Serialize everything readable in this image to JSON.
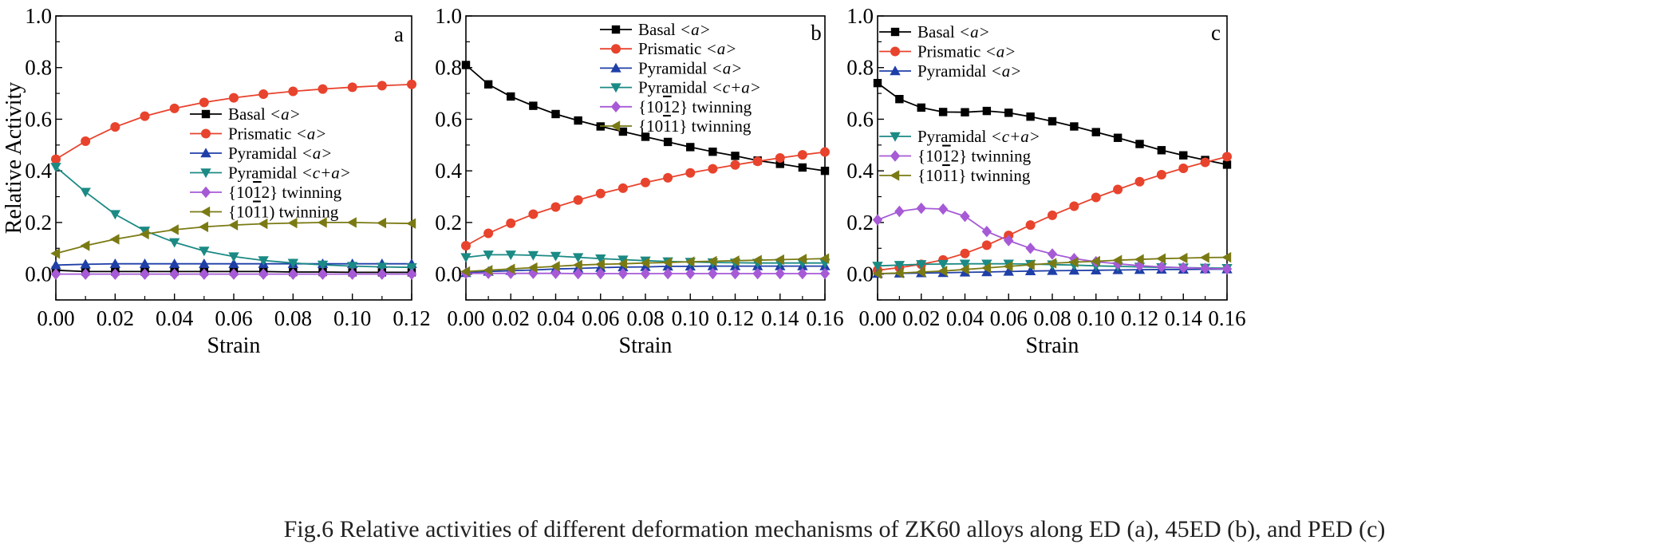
{
  "caption": "Fig.6    Relative activities of different deformation mechanisms of ZK60 alloys along ED (a), 45ED (b), and PED (c)",
  "styles": {
    "Basal": {
      "color": "#000000",
      "marker": "square"
    },
    "Prismatic": {
      "color": "#e8432d",
      "marker": "circle"
    },
    "PyrA": {
      "color": "#1f3fa8",
      "marker": "triangle-up"
    },
    "PyrCA": {
      "color": "#1b8a84",
      "marker": "triangle-down"
    },
    "T1012": {
      "color": "#a65ad6",
      "marker": "diamond"
    },
    "T1011": {
      "color": "#7a7a14",
      "marker": "triangle-left"
    }
  },
  "chart_data": [
    {
      "type": "line",
      "panel_label": "a",
      "xlabel": "Strain",
      "ylabel": "Relative Activity",
      "xlim": [
        0,
        0.12
      ],
      "ylim": [
        -0.1,
        1.0
      ],
      "xticks": [
        "0.00",
        "0.02",
        "0.04",
        "0.06",
        "0.08",
        "0.10",
        "0.12"
      ],
      "yticks": [
        "0.0",
        "0.2",
        "0.4",
        "0.6",
        "0.8",
        "1.0"
      ],
      "legend_position": "center",
      "x": [
        0,
        0.01,
        0.02,
        0.03,
        0.04,
        0.05,
        0.06,
        0.07,
        0.08,
        0.09,
        0.1,
        0.11,
        0.12
      ],
      "series": [
        {
          "key": "Basal",
          "name": "Basal",
          "name_suffix": "<a>",
          "values": [
            0.015,
            0.01,
            0.01,
            0.01,
            0.01,
            0.01,
            0.01,
            0.01,
            0.008,
            0.008,
            0.007,
            0.007,
            0.007
          ]
        },
        {
          "key": "Prismatic",
          "name": "Prismatic",
          "name_suffix": "<a>",
          "values": [
            0.445,
            0.515,
            0.57,
            0.612,
            0.642,
            0.665,
            0.683,
            0.697,
            0.708,
            0.717,
            0.724,
            0.73,
            0.735
          ]
        },
        {
          "key": "PyrA",
          "name": "Pyramidal",
          "name_suffix": "<a>",
          "values": [
            0.035,
            0.038,
            0.04,
            0.04,
            0.04,
            0.04,
            0.04,
            0.04,
            0.04,
            0.04,
            0.04,
            0.04,
            0.04
          ]
        },
        {
          "key": "PyrCA",
          "name": "Pyramidal",
          "name_suffix": "<c+a>",
          "values": [
            0.415,
            0.318,
            0.232,
            0.168,
            0.123,
            0.09,
            0.068,
            0.053,
            0.043,
            0.036,
            0.031,
            0.028,
            0.026
          ]
        },
        {
          "key": "T1012",
          "name": "{10",
          "name_bar": "1",
          "name_tail": "2} twinning",
          "values": [
            0.0,
            0.0,
            0.0,
            0.0,
            0.0,
            0.0,
            0.0,
            0.0,
            0.0,
            0.0,
            0.0,
            0.0,
            0.0
          ]
        },
        {
          "key": "T1011",
          "name": "{10",
          "name_bar": "1",
          "name_tail": "1) twinning",
          "values": [
            0.08,
            0.11,
            0.135,
            0.155,
            0.172,
            0.183,
            0.19,
            0.195,
            0.198,
            0.2,
            0.2,
            0.198,
            0.196
          ]
        }
      ]
    },
    {
      "type": "line",
      "panel_label": "b",
      "xlabel": "Strain",
      "ylabel": "",
      "xlim": [
        0,
        0.16
      ],
      "ylim": [
        -0.1,
        1.0
      ],
      "xticks": [
        "0.00",
        "0.02",
        "0.04",
        "0.06",
        "0.08",
        "0.10",
        "0.12",
        "0.14",
        "0.16"
      ],
      "yticks": [
        "0.0",
        "0.2",
        "0.4",
        "0.6",
        "0.8",
        "1.0"
      ],
      "legend_position": "top-center",
      "x": [
        0,
        0.01,
        0.02,
        0.03,
        0.04,
        0.05,
        0.06,
        0.07,
        0.08,
        0.09,
        0.1,
        0.11,
        0.12,
        0.13,
        0.14,
        0.15,
        0.16
      ],
      "series": [
        {
          "key": "Basal",
          "name": "Basal",
          "name_suffix": "<a>",
          "values": [
            0.81,
            0.735,
            0.688,
            0.652,
            0.62,
            0.595,
            0.572,
            0.552,
            0.532,
            0.512,
            0.492,
            0.474,
            0.458,
            0.44,
            0.427,
            0.413,
            0.4
          ]
        },
        {
          "key": "Prismatic",
          "name": "Prismatic",
          "name_suffix": "<a>",
          "values": [
            0.11,
            0.158,
            0.197,
            0.232,
            0.26,
            0.287,
            0.312,
            0.333,
            0.355,
            0.373,
            0.392,
            0.408,
            0.423,
            0.437,
            0.45,
            0.462,
            0.473
          ]
        },
        {
          "key": "PyrA",
          "name": "Pyramidal",
          "name_suffix": "<a>",
          "values": [
            0.005,
            0.01,
            0.013,
            0.016,
            0.02,
            0.022,
            0.025,
            0.027,
            0.028,
            0.03,
            0.03,
            0.031,
            0.031,
            0.031,
            0.031,
            0.031,
            0.031
          ]
        },
        {
          "key": "PyrCA",
          "name": "Pyramidal",
          "name_suffix": "<c+a>",
          "values": [
            0.065,
            0.075,
            0.075,
            0.073,
            0.07,
            0.065,
            0.06,
            0.056,
            0.052,
            0.049,
            0.047,
            0.045,
            0.044,
            0.043,
            0.043,
            0.043,
            0.043
          ]
        },
        {
          "key": "T1012",
          "name": "{10",
          "name_bar": "1",
          "name_tail": "2} twinning",
          "values": [
            0.003,
            0.003,
            0.003,
            0.003,
            0.003,
            0.002,
            0.002,
            0.002,
            0.002,
            0.002,
            0.002,
            0.002,
            0.002,
            0.002,
            0.002,
            0.002,
            0.002
          ]
        },
        {
          "key": "T1011",
          "name": "{10",
          "name_bar": "1",
          "name_tail": "1} twinning",
          "values": [
            0.01,
            0.015,
            0.02,
            0.025,
            0.03,
            0.035,
            0.038,
            0.04,
            0.043,
            0.045,
            0.048,
            0.05,
            0.052,
            0.054,
            0.056,
            0.058,
            0.06
          ]
        }
      ]
    },
    {
      "type": "line",
      "panel_label": "c",
      "xlabel": "Strain",
      "ylabel": "",
      "xlim": [
        0,
        0.16
      ],
      "ylim": [
        -0.1,
        1.0
      ],
      "xticks": [
        "0.00",
        "0.02",
        "0.04",
        "0.06",
        "0.08",
        "0.10",
        "0.12",
        "0.14",
        "0.16"
      ],
      "yticks": [
        "0.0",
        "0.2",
        "0.4",
        "0.6",
        "0.8",
        "1.0"
      ],
      "legend_position": "split: top-left and center-left",
      "x": [
        0,
        0.01,
        0.02,
        0.03,
        0.04,
        0.05,
        0.06,
        0.07,
        0.08,
        0.09,
        0.1,
        0.11,
        0.12,
        0.13,
        0.14,
        0.15,
        0.16
      ],
      "series": [
        {
          "key": "Basal",
          "name": "Basal",
          "name_suffix": "<a>",
          "values": [
            0.74,
            0.678,
            0.645,
            0.628,
            0.627,
            0.632,
            0.625,
            0.61,
            0.592,
            0.572,
            0.55,
            0.528,
            0.504,
            0.48,
            0.46,
            0.442,
            0.424
          ]
        },
        {
          "key": "Prismatic",
          "name": "Prismatic",
          "name_suffix": "<a>",
          "values": [
            0.015,
            0.025,
            0.038,
            0.055,
            0.08,
            0.112,
            0.15,
            0.19,
            0.228,
            0.263,
            0.297,
            0.328,
            0.358,
            0.385,
            0.41,
            0.433,
            0.455
          ]
        },
        {
          "key": "PyrA",
          "name": "Pyramidal",
          "name_suffix": "<a>",
          "values": [
            0.002,
            0.003,
            0.004,
            0.005,
            0.007,
            0.008,
            0.01,
            0.012,
            0.013,
            0.014,
            0.015,
            0.016,
            0.017,
            0.018,
            0.018,
            0.019,
            0.019
          ]
        },
        {
          "key": "PyrCA",
          "name": "Pyramidal",
          "name_suffix": "<c+a>",
          "values": [
            0.032,
            0.035,
            0.038,
            0.039,
            0.04,
            0.04,
            0.04,
            0.039,
            0.037,
            0.035,
            0.032,
            0.03,
            0.028,
            0.026,
            0.025,
            0.024,
            0.023
          ]
        },
        {
          "key": "T1012",
          "name": "{10",
          "name_bar": "1",
          "name_tail": "2} twinning",
          "values": [
            0.21,
            0.243,
            0.255,
            0.252,
            0.224,
            0.165,
            0.13,
            0.1,
            0.078,
            0.06,
            0.048,
            0.04,
            0.033,
            0.028,
            0.025,
            0.022,
            0.02
          ]
        },
        {
          "key": "T1011",
          "name": "{10",
          "name_bar": "1",
          "name_tail": "1} twinning",
          "values": [
            0.002,
            0.004,
            0.008,
            0.012,
            0.018,
            0.024,
            0.03,
            0.036,
            0.042,
            0.046,
            0.05,
            0.054,
            0.057,
            0.06,
            0.062,
            0.064,
            0.065
          ]
        }
      ]
    }
  ]
}
